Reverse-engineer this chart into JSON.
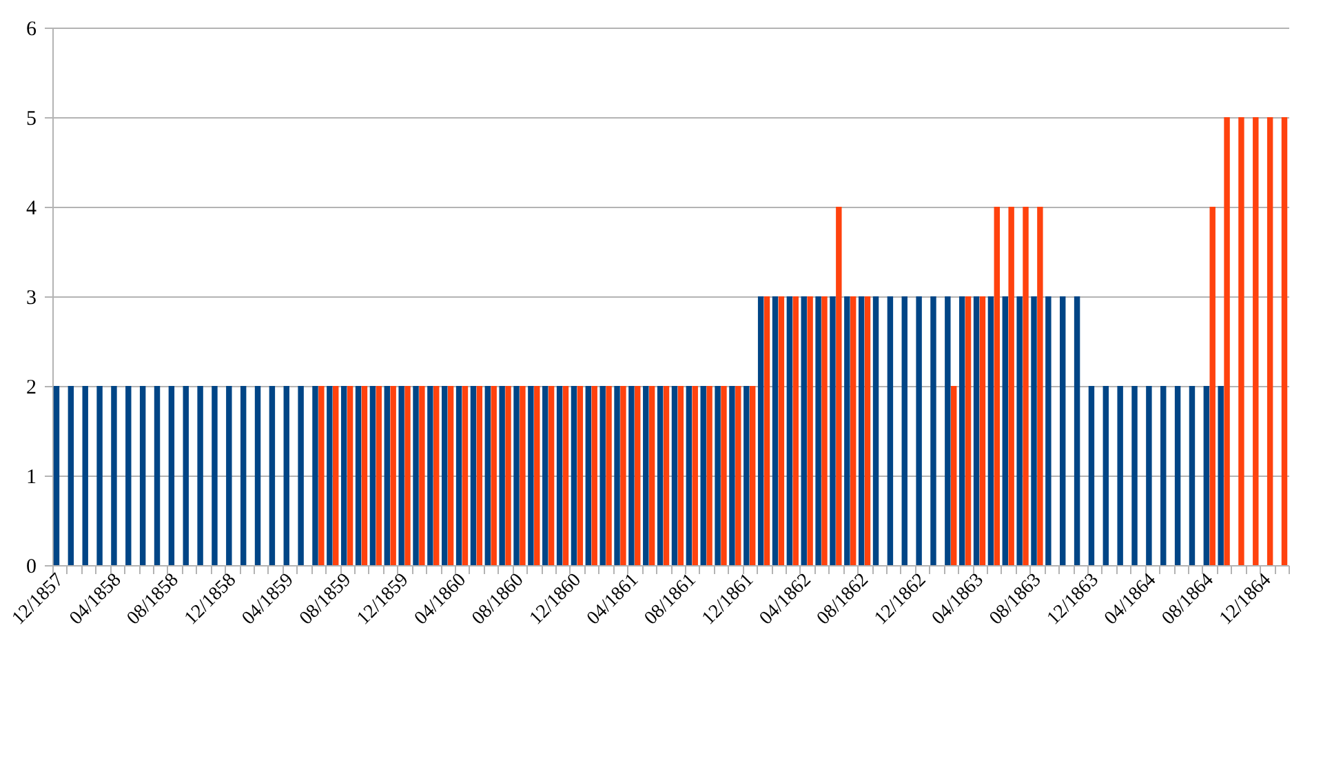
{
  "chart_data": {
    "type": "bar",
    "categories": [
      "12/1857",
      null,
      null,
      null,
      "04/1858",
      null,
      null,
      null,
      "08/1858",
      null,
      null,
      null,
      "12/1858",
      null,
      null,
      null,
      "04/1859",
      null,
      null,
      null,
      "08/1859",
      null,
      null,
      null,
      "12/1859",
      null,
      null,
      null,
      "04/1860",
      null,
      null,
      null,
      "08/1860",
      null,
      null,
      null,
      "12/1860",
      null,
      null,
      null,
      "04/1861",
      null,
      null,
      null,
      "08/1861",
      null,
      null,
      null,
      "12/1861",
      null,
      null,
      null,
      "04/1862",
      null,
      null,
      null,
      "08/1862",
      null,
      null,
      null,
      "12/1862",
      null,
      null,
      null,
      "04/1863",
      null,
      null,
      null,
      "08/1863",
      null,
      null,
      null,
      "12/1863",
      null,
      null,
      null,
      "04/1864",
      null,
      null,
      null,
      "08/1864",
      null,
      null,
      null,
      "12/1864",
      null
    ],
    "series": [
      {
        "color": "#004586",
        "values": [
          2,
          2,
          2,
          2,
          2,
          2,
          2,
          2,
          2,
          2,
          2,
          2,
          2,
          2,
          2,
          2,
          2,
          2,
          2,
          2,
          2,
          2,
          2,
          2,
          2,
          2,
          2,
          2,
          2,
          2,
          2,
          2,
          2,
          2,
          2,
          2,
          2,
          2,
          2,
          2,
          2,
          2,
          2,
          2,
          2,
          2,
          2,
          2,
          2,
          3,
          3,
          3,
          3,
          3,
          3,
          3,
          3,
          3,
          3,
          3,
          3,
          3,
          3,
          3,
          3,
          3,
          3,
          3,
          3,
          3,
          3,
          3,
          2,
          2,
          2,
          2,
          2,
          2,
          2,
          2,
          2,
          2,
          null,
          null,
          null,
          null
        ]
      },
      {
        "color": "#ff420e",
        "values": [
          null,
          null,
          null,
          null,
          null,
          null,
          null,
          null,
          null,
          null,
          null,
          null,
          null,
          null,
          null,
          null,
          null,
          null,
          2,
          2,
          2,
          2,
          2,
          2,
          2,
          2,
          2,
          2,
          2,
          2,
          2,
          2,
          2,
          2,
          2,
          2,
          2,
          2,
          2,
          2,
          2,
          2,
          2,
          2,
          2,
          2,
          2,
          2,
          2,
          3,
          3,
          3,
          3,
          3,
          4,
          3,
          3,
          null,
          null,
          null,
          null,
          null,
          2,
          3,
          3,
          4,
          4,
          4,
          4,
          null,
          null,
          null,
          null,
          null,
          null,
          null,
          null,
          null,
          null,
          null,
          4,
          5,
          5,
          5,
          5,
          5
        ]
      }
    ],
    "ylim": [
      0,
      6
    ],
    "yticks": [
      0,
      1,
      2,
      3,
      4,
      5,
      6
    ],
    "grid": "y"
  }
}
